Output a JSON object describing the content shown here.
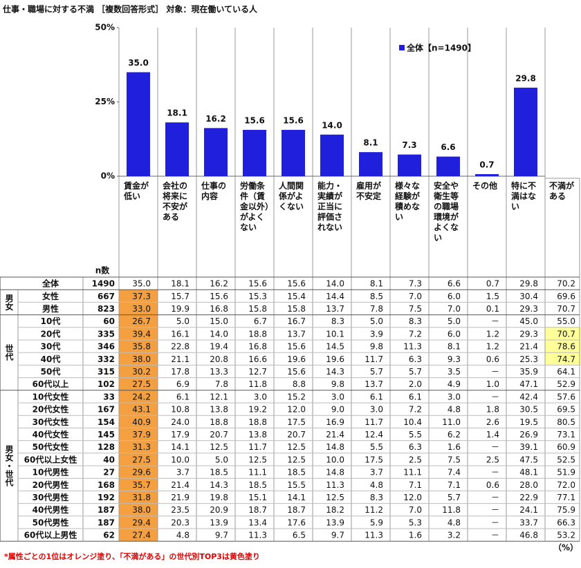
{
  "title": "仕事・職場に対する不満 ［複数回答形式］ 対象：現在働いている人",
  "chart_data": {
    "type": "bar",
    "categories": [
      "賃金が低い",
      "会社の将来に不安がある",
      "仕事の内容",
      "労働条件（賃金以外）がよくない",
      "人間関係がよくない",
      "能力・実績が正当に評価されない",
      "雇用が不安定",
      "様々な経験が積めない",
      "安全や衛生等の職場環境がよくない",
      "その他",
      "特に不満はない"
    ],
    "values": [
      35.0,
      18.1,
      16.2,
      15.6,
      15.6,
      14.0,
      8.1,
      7.3,
      6.6,
      0.7,
      29.8
    ],
    "value_labels": [
      "35.0",
      "18.1",
      "16.2",
      "15.6",
      "15.6",
      "14.0",
      "8.1",
      "7.3",
      "6.6",
      "0.7",
      "29.8"
    ],
    "series_name": "全体【n=1490】",
    "color": "#1f1fdc",
    "legend": "top-right",
    "ylim": [
      0,
      50
    ],
    "yticks": [
      {
        "value": 0,
        "label": "0%"
      },
      {
        "value": 25,
        "label": "25%"
      },
      {
        "value": 50,
        "label": "50%"
      }
    ]
  },
  "table": {
    "n_label": "n数",
    "extra_column": "不満がある",
    "highlight_colors": {
      "orange": "#f5a040",
      "yellow": "#ffff99"
    },
    "total": {
      "label": "全体",
      "n": "1490",
      "values": [
        "35.0",
        "18.1",
        "16.2",
        "15.6",
        "15.6",
        "14.0",
        "8.1",
        "7.3",
        "6.6",
        "0.7",
        "29.8",
        "70.2"
      ]
    },
    "groups": [
      {
        "label": "男女",
        "rows": [
          {
            "label": "女性",
            "n": "667",
            "values": [
              "37.3",
              "15.7",
              "15.6",
              "15.3",
              "15.4",
              "14.4",
              "8.5",
              "7.0",
              "6.0",
              "1.5",
              "30.4",
              "69.6"
            ],
            "orange": 0
          },
          {
            "label": "男性",
            "n": "823",
            "values": [
              "33.0",
              "19.9",
              "16.8",
              "15.8",
              "15.8",
              "13.7",
              "7.8",
              "7.5",
              "7.0",
              "0.1",
              "29.3",
              "70.7"
            ],
            "orange": 0
          }
        ]
      },
      {
        "label": "世代",
        "rows": [
          {
            "label": "10代",
            "n": "60",
            "values": [
              "26.7",
              "5.0",
              "15.0",
              "6.7",
              "16.7",
              "8.3",
              "5.0",
              "8.3",
              "5.0",
              "－",
              "45.0",
              "55.0"
            ],
            "orange": 0
          },
          {
            "label": "20代",
            "n": "335",
            "values": [
              "39.4",
              "16.1",
              "14.0",
              "18.8",
              "13.7",
              "10.1",
              "3.9",
              "7.2",
              "6.0",
              "1.2",
              "29.3",
              "70.7"
            ],
            "orange": 0,
            "yellow": 11
          },
          {
            "label": "30代",
            "n": "346",
            "values": [
              "35.8",
              "22.8",
              "19.4",
              "16.8",
              "15.6",
              "14.5",
              "9.8",
              "11.3",
              "8.1",
              "1.2",
              "21.4",
              "78.6"
            ],
            "orange": 0,
            "yellow": 11
          },
          {
            "label": "40代",
            "n": "332",
            "values": [
              "38.0",
              "21.1",
              "20.8",
              "16.6",
              "19.6",
              "19.6",
              "11.7",
              "6.3",
              "9.3",
              "0.6",
              "25.3",
              "74.7"
            ],
            "orange": 0,
            "yellow": 11
          },
          {
            "label": "50代",
            "n": "315",
            "values": [
              "30.2",
              "17.8",
              "13.3",
              "12.7",
              "15.6",
              "14.3",
              "5.7",
              "5.7",
              "3.5",
              "－",
              "35.9",
              "64.1"
            ],
            "orange": 0
          },
          {
            "label": "60代以上",
            "n": "102",
            "values": [
              "27.5",
              "6.9",
              "7.8",
              "11.8",
              "8.8",
              "9.8",
              "13.7",
              "2.0",
              "4.9",
              "1.0",
              "47.1",
              "52.9"
            ],
            "orange": 0
          }
        ]
      },
      {
        "label": "男女・世代",
        "rows": [
          {
            "label": "10代女性",
            "n": "33",
            "values": [
              "24.2",
              "6.1",
              "12.1",
              "3.0",
              "15.2",
              "3.0",
              "6.1",
              "6.1",
              "3.0",
              "－",
              "42.4",
              "57.6"
            ],
            "orange": 0
          },
          {
            "label": "20代女性",
            "n": "167",
            "values": [
              "43.1",
              "10.8",
              "13.8",
              "19.2",
              "12.0",
              "9.0",
              "3.0",
              "7.2",
              "4.8",
              "1.8",
              "30.5",
              "69.5"
            ],
            "orange": 0
          },
          {
            "label": "30代女性",
            "n": "154",
            "values": [
              "40.9",
              "24.0",
              "18.8",
              "18.8",
              "17.5",
              "16.9",
              "11.7",
              "10.4",
              "11.0",
              "2.6",
              "19.5",
              "80.5"
            ],
            "orange": 0
          },
          {
            "label": "40代女性",
            "n": "145",
            "values": [
              "37.9",
              "17.9",
              "20.7",
              "13.8",
              "20.7",
              "21.4",
              "12.4",
              "5.5",
              "6.2",
              "1.4",
              "26.9",
              "73.1"
            ],
            "orange": 0
          },
          {
            "label": "50代女性",
            "n": "128",
            "values": [
              "31.3",
              "14.1",
              "12.5",
              "11.7",
              "12.5",
              "14.8",
              "5.5",
              "6.3",
              "1.6",
              "－",
              "39.1",
              "60.9"
            ],
            "orange": 0
          },
          {
            "label": "60代以上女性",
            "n": "40",
            "values": [
              "27.5",
              "10.0",
              "5.0",
              "12.5",
              "12.5",
              "10.0",
              "17.5",
              "2.5",
              "7.5",
              "2.5",
              "47.5",
              "52.5"
            ],
            "orange": 0
          },
          {
            "label": "10代男性",
            "n": "27",
            "values": [
              "29.6",
              "3.7",
              "18.5",
              "11.1",
              "18.5",
              "14.8",
              "3.7",
              "11.1",
              "7.4",
              "－",
              "48.1",
              "51.9"
            ],
            "orange": 0
          },
          {
            "label": "20代男性",
            "n": "168",
            "values": [
              "35.7",
              "21.4",
              "14.3",
              "18.5",
              "15.5",
              "11.3",
              "4.8",
              "7.1",
              "7.1",
              "0.6",
              "28.0",
              "72.0"
            ],
            "orange": 0
          },
          {
            "label": "30代男性",
            "n": "192",
            "values": [
              "31.8",
              "21.9",
              "19.8",
              "15.1",
              "14.1",
              "12.5",
              "8.3",
              "12.0",
              "5.7",
              "－",
              "22.9",
              "77.1"
            ],
            "orange": 0
          },
          {
            "label": "40代男性",
            "n": "187",
            "values": [
              "38.0",
              "23.5",
              "20.9",
              "18.7",
              "18.7",
              "18.2",
              "11.2",
              "7.0",
              "11.8",
              "－",
              "24.1",
              "75.9"
            ],
            "orange": 0
          },
          {
            "label": "50代男性",
            "n": "187",
            "values": [
              "29.4",
              "20.3",
              "13.9",
              "13.4",
              "17.6",
              "13.9",
              "5.9",
              "5.3",
              "4.8",
              "－",
              "33.7",
              "66.3"
            ],
            "orange": 0
          },
          {
            "label": "60代以上男性",
            "n": "62",
            "values": [
              "27.4",
              "4.8",
              "9.7",
              "11.3",
              "6.5",
              "9.7",
              "11.3",
              "1.6",
              "3.2",
              "－",
              "46.8",
              "53.2"
            ],
            "orange": 0
          }
        ]
      }
    ]
  },
  "footnote": "*属性ごとの1位はオレンジ塗り、「不満がある」の世代別TOP3は黄色塗り",
  "unit_note": "（%）"
}
